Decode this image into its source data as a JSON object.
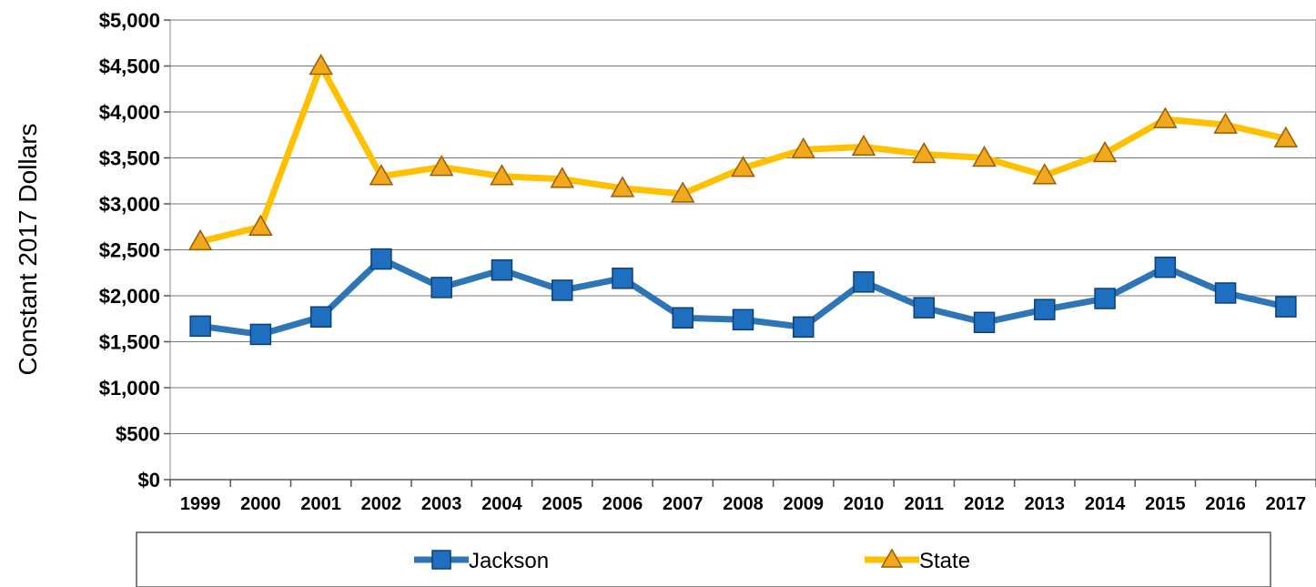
{
  "chart_data": {
    "type": "line",
    "title": "",
    "xlabel": "",
    "ylabel": "Constant 2017 Dollars",
    "ylim": [
      0,
      5000
    ],
    "y_ticks": [
      "$0",
      "$500",
      "$1,000",
      "$1,500",
      "$2,000",
      "$2,500",
      "$3,000",
      "$3,500",
      "$4,000",
      "$4,500",
      "$5,000"
    ],
    "grid": true,
    "legend_position": "bottom",
    "categories": [
      "1999",
      "2000",
      "2001",
      "2002",
      "2003",
      "2004",
      "2005",
      "2006",
      "2007",
      "2008",
      "2009",
      "2010",
      "2011",
      "2012",
      "2013",
      "2014",
      "2015",
      "2016",
      "2017"
    ],
    "series": [
      {
        "name": "Jackson",
        "color": "#2e75b6",
        "marker": "square",
        "marker_fill": "#1f6fc0",
        "values": [
          1670,
          1580,
          1770,
          2400,
          2090,
          2280,
          2060,
          2190,
          1760,
          1740,
          1660,
          2150,
          1870,
          1710,
          1850,
          1970,
          2310,
          2030,
          1880
        ]
      },
      {
        "name": "State",
        "color": "#ffc000",
        "marker": "triangle",
        "marker_fill": "#f0a81c",
        "values": [
          2590,
          2750,
          4500,
          3300,
          3400,
          3300,
          3270,
          3170,
          3110,
          3390,
          3590,
          3620,
          3540,
          3500,
          3310,
          3550,
          3920,
          3860,
          3710
        ]
      }
    ]
  }
}
